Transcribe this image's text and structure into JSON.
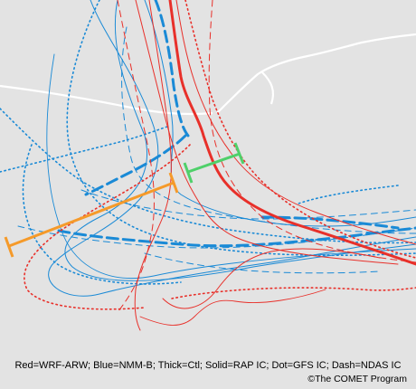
{
  "legend_text": "Red=WRF-ARW; Blue=NMM-B; Thick=Ctl; Solid=RAP IC; Dot=GFS IC; Dash=NDAS IC",
  "credit_text": "©The COMET Program",
  "colors": {
    "background": "#e3e3e3",
    "boundary": "#ffffff",
    "wrf_arw": "#e8302a",
    "nmm_b": "#1a8ad6",
    "spread_orange": "#f59a2a",
    "spread_green": "#4fd06a"
  }
}
